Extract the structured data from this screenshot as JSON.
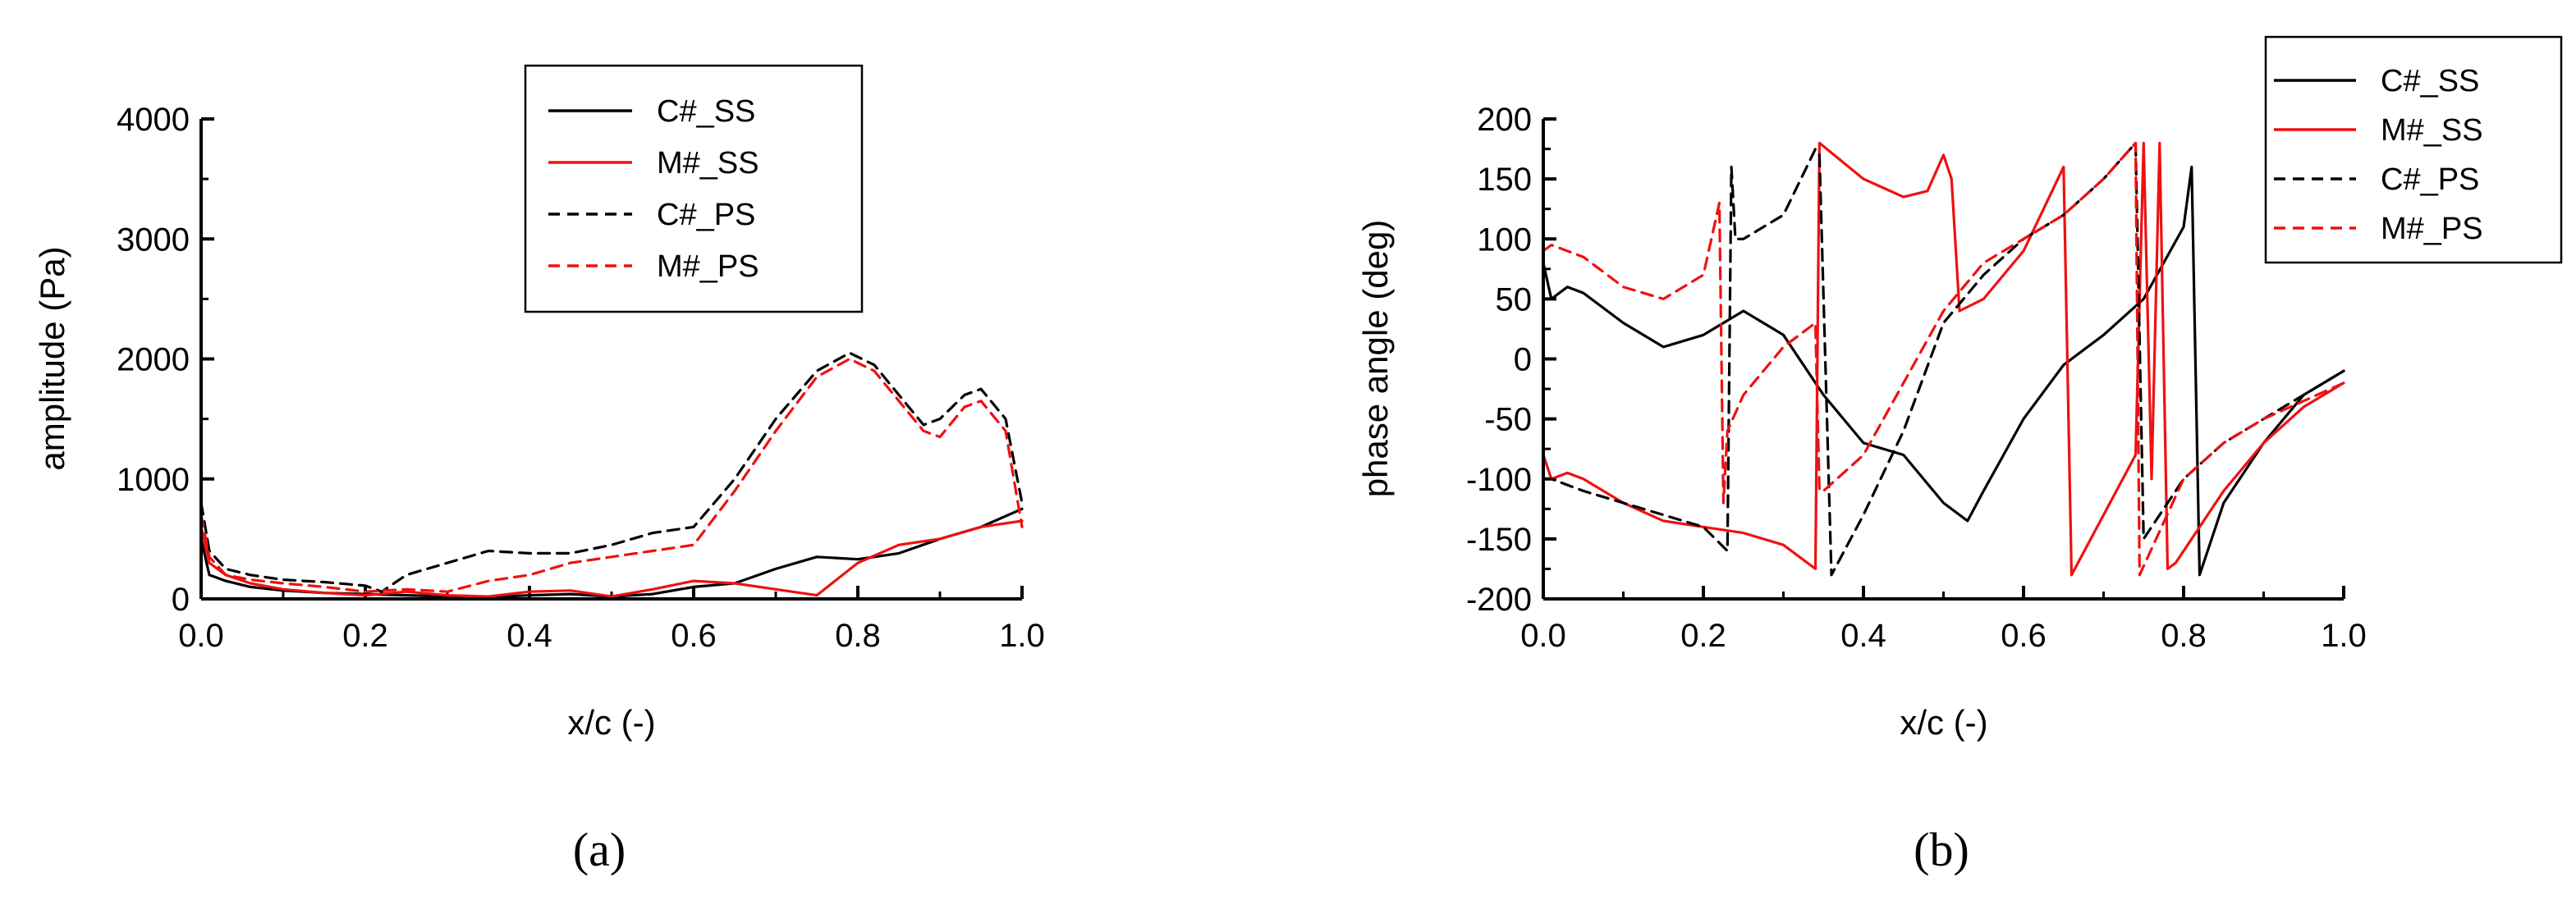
{
  "colors": {
    "black": "#000000",
    "red": "#ee1111"
  },
  "chart_data": [
    {
      "type": "line",
      "panel_label": "(a)",
      "xlabel": "x/c (-)",
      "ylabel": "amplitude (Pa)",
      "xlim": [
        0,
        1.0
      ],
      "ylim": [
        0,
        4000
      ],
      "xticks": [
        "0.0",
        "0.2",
        "0.4",
        "0.6",
        "0.8",
        "1.0"
      ],
      "yticks": [
        "0",
        "1000",
        "2000",
        "3000",
        "4000"
      ],
      "legend_position": "top-right",
      "series": [
        {
          "name": "C#_SS",
          "color": "#000000",
          "dash": "solid",
          "x": [
            0,
            0.01,
            0.03,
            0.06,
            0.1,
            0.15,
            0.2,
            0.25,
            0.3,
            0.35,
            0.4,
            0.45,
            0.5,
            0.55,
            0.6,
            0.65,
            0.7,
            0.75,
            0.8,
            0.85,
            0.9,
            0.95,
            1.0
          ],
          "y": [
            500,
            200,
            150,
            100,
            70,
            50,
            40,
            30,
            20,
            15,
            30,
            40,
            20,
            40,
            100,
            130,
            250,
            350,
            330,
            380,
            500,
            600,
            750
          ]
        },
        {
          "name": "M#_SS",
          "color": "#ee1111",
          "dash": "solid",
          "x": [
            0,
            0.01,
            0.03,
            0.06,
            0.1,
            0.15,
            0.2,
            0.25,
            0.3,
            0.35,
            0.4,
            0.45,
            0.5,
            0.55,
            0.6,
            0.65,
            0.7,
            0.75,
            0.8,
            0.85,
            0.9,
            0.95,
            1.0
          ],
          "y": [
            600,
            300,
            200,
            130,
            80,
            50,
            30,
            60,
            30,
            20,
            60,
            70,
            20,
            80,
            150,
            130,
            80,
            30,
            300,
            450,
            500,
            600,
            650
          ]
        },
        {
          "name": "C#_PS",
          "color": "#000000",
          "dash": "dashed",
          "x": [
            0,
            0.01,
            0.03,
            0.06,
            0.1,
            0.15,
            0.2,
            0.22,
            0.25,
            0.3,
            0.35,
            0.4,
            0.45,
            0.5,
            0.55,
            0.6,
            0.65,
            0.7,
            0.75,
            0.79,
            0.82,
            0.85,
            0.88,
            0.9,
            0.93,
            0.95,
            0.98,
            1.0
          ],
          "y": [
            800,
            400,
            250,
            200,
            160,
            140,
            110,
            60,
            200,
            300,
            400,
            380,
            380,
            450,
            550,
            600,
            1000,
            1500,
            1900,
            2050,
            1950,
            1700,
            1450,
            1500,
            1700,
            1750,
            1500,
            800
          ]
        },
        {
          "name": "M#_PS",
          "color": "#ee1111",
          "dash": "dashed",
          "x": [
            0,
            0.01,
            0.03,
            0.06,
            0.1,
            0.15,
            0.2,
            0.25,
            0.3,
            0.35,
            0.4,
            0.45,
            0.5,
            0.55,
            0.6,
            0.65,
            0.7,
            0.75,
            0.79,
            0.82,
            0.85,
            0.88,
            0.9,
            0.93,
            0.95,
            0.98,
            1.0
          ],
          "y": [
            700,
            350,
            200,
            160,
            130,
            100,
            60,
            80,
            60,
            150,
            200,
            300,
            350,
            400,
            450,
            900,
            1400,
            1850,
            2000,
            1900,
            1650,
            1400,
            1350,
            1600,
            1650,
            1400,
            600
          ]
        }
      ]
    },
    {
      "type": "line",
      "panel_label": "(b)",
      "xlabel": "x/c (-)",
      "ylabel": "phase angle (deg)",
      "xlim": [
        0,
        1.0
      ],
      "ylim": [
        -200,
        200
      ],
      "xticks": [
        "0.0",
        "0.2",
        "0.4",
        "0.6",
        "0.8",
        "1.0"
      ],
      "yticks": [
        "-200",
        "-150",
        "-100",
        "-50",
        "0",
        "50",
        "100",
        "150",
        "200"
      ],
      "legend_position": "top-right",
      "series": [
        {
          "name": "C#_SS",
          "color": "#000000",
          "dash": "solid",
          "x": [
            0,
            0.01,
            0.02,
            0.03,
            0.05,
            0.1,
            0.15,
            0.2,
            0.25,
            0.3,
            0.35,
            0.4,
            0.45,
            0.5,
            0.53,
            0.55,
            0.6,
            0.65,
            0.7,
            0.75,
            0.8,
            0.81,
            0.82,
            0.85,
            0.9,
            0.95,
            1.0
          ],
          "y": [
            80,
            50,
            55,
            60,
            55,
            30,
            10,
            20,
            40,
            20,
            -30,
            -70,
            -80,
            -120,
            -135,
            -110,
            -50,
            -5,
            20,
            50,
            110,
            160,
            -180,
            -120,
            -70,
            -30,
            -10
          ]
        },
        {
          "name": "M#_SS",
          "color": "#ee1111",
          "dash": "solid",
          "x": [
            0,
            0.01,
            0.03,
            0.05,
            0.1,
            0.15,
            0.2,
            0.25,
            0.3,
            0.34,
            0.345,
            0.4,
            0.45,
            0.48,
            0.5,
            0.51,
            0.52,
            0.55,
            0.6,
            0.65,
            0.66,
            0.7,
            0.74,
            0.75,
            0.76,
            0.77,
            0.78,
            0.79,
            0.85,
            0.9,
            0.95,
            1.0
          ],
          "y": [
            -80,
            -100,
            -95,
            -100,
            -120,
            -135,
            -140,
            -145,
            -155,
            -175,
            180,
            150,
            135,
            140,
            170,
            150,
            40,
            50,
            90,
            160,
            -180,
            -130,
            -80,
            180,
            -100,
            180,
            -175,
            -170,
            -110,
            -70,
            -40,
            -20
          ]
        },
        {
          "name": "C#_PS",
          "color": "#000000",
          "dash": "dashed",
          "x": [
            0,
            0.01,
            0.05,
            0.1,
            0.15,
            0.2,
            0.23,
            0.235,
            0.24,
            0.25,
            0.3,
            0.34,
            0.345,
            0.36,
            0.4,
            0.45,
            0.5,
            0.55,
            0.6,
            0.65,
            0.7,
            0.74,
            0.75,
            0.8,
            0.85,
            0.9,
            0.95,
            1.0
          ],
          "y": [
            -100,
            -100,
            -110,
            -120,
            -130,
            -140,
            -160,
            160,
            100,
            100,
            120,
            175,
            170,
            -180,
            -130,
            -60,
            30,
            70,
            100,
            120,
            150,
            180,
            -150,
            -100,
            -70,
            -50,
            -30,
            -10
          ]
        },
        {
          "name": "M#_PS",
          "color": "#ee1111",
          "dash": "dashed",
          "x": [
            0,
            0.01,
            0.05,
            0.1,
            0.15,
            0.2,
            0.22,
            0.225,
            0.23,
            0.25,
            0.3,
            0.34,
            0.345,
            0.35,
            0.4,
            0.45,
            0.5,
            0.55,
            0.6,
            0.65,
            0.7,
            0.74,
            0.745,
            0.8,
            0.85,
            0.9,
            0.95,
            1.0
          ],
          "y": [
            90,
            95,
            85,
            60,
            50,
            70,
            130,
            -120,
            -60,
            -30,
            10,
            30,
            -110,
            -110,
            -80,
            -20,
            40,
            80,
            100,
            120,
            150,
            180,
            -180,
            -100,
            -70,
            -50,
            -35,
            -20
          ]
        }
      ]
    }
  ]
}
